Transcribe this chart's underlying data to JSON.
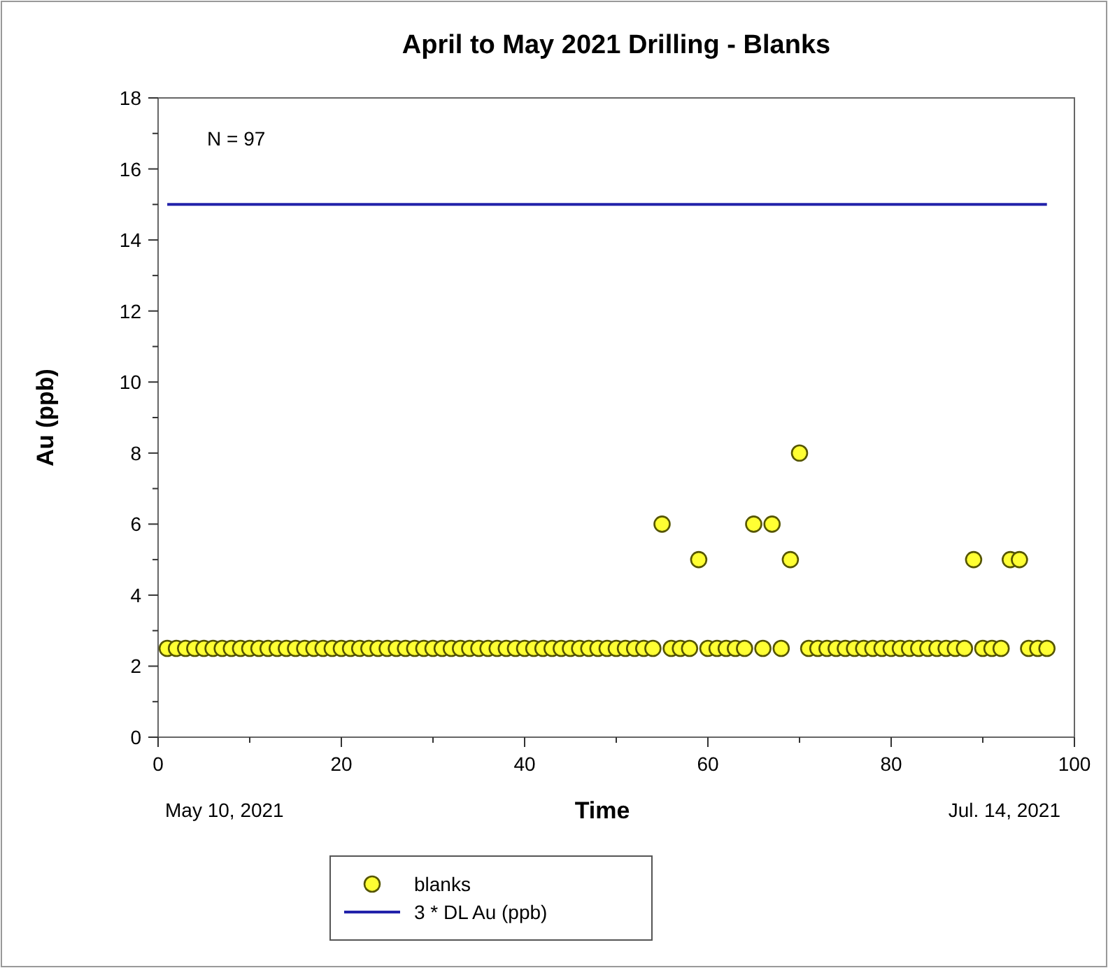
{
  "chart_data": {
    "type": "scatter",
    "title": "April to May 2021 Drilling - Blanks",
    "xlabel": "Time",
    "ylabel": "Au (ppb)",
    "x": [
      1,
      2,
      3,
      4,
      5,
      6,
      7,
      8,
      9,
      10,
      11,
      12,
      13,
      14,
      15,
      16,
      17,
      18,
      19,
      20,
      21,
      22,
      23,
      24,
      25,
      26,
      27,
      28,
      29,
      30,
      31,
      32,
      33,
      34,
      35,
      36,
      37,
      38,
      39,
      40,
      41,
      42,
      43,
      44,
      45,
      46,
      47,
      48,
      49,
      50,
      51,
      52,
      53,
      54,
      55,
      56,
      57,
      58,
      59,
      60,
      61,
      62,
      63,
      64,
      65,
      66,
      67,
      68,
      69,
      70,
      71,
      72,
      73,
      74,
      75,
      76,
      77,
      78,
      79,
      80,
      81,
      82,
      83,
      84,
      85,
      86,
      87,
      88,
      89,
      90,
      91,
      92,
      93,
      94,
      95,
      96,
      97
    ],
    "series": [
      {
        "name": "blanks",
        "color": "#ffff33",
        "marker": "circle",
        "values": [
          2.5,
          2.5,
          2.5,
          2.5,
          2.5,
          2.5,
          2.5,
          2.5,
          2.5,
          2.5,
          2.5,
          2.5,
          2.5,
          2.5,
          2.5,
          2.5,
          2.5,
          2.5,
          2.5,
          2.5,
          2.5,
          2.5,
          2.5,
          2.5,
          2.5,
          2.5,
          2.5,
          2.5,
          2.5,
          2.5,
          2.5,
          2.5,
          2.5,
          2.5,
          2.5,
          2.5,
          2.5,
          2.5,
          2.5,
          2.5,
          2.5,
          2.5,
          2.5,
          2.5,
          2.5,
          2.5,
          2.5,
          2.5,
          2.5,
          2.5,
          2.5,
          2.5,
          2.5,
          2.5,
          6,
          2.5,
          2.5,
          2.5,
          5,
          2.5,
          2.5,
          2.5,
          2.5,
          2.5,
          6,
          2.5,
          6,
          2.5,
          5,
          8,
          2.5,
          2.5,
          2.5,
          2.5,
          2.5,
          2.5,
          2.5,
          2.5,
          2.5,
          2.5,
          2.5,
          2.5,
          2.5,
          2.5,
          2.5,
          2.5,
          2.5,
          2.5,
          5,
          2.5,
          2.5,
          2.5,
          5,
          5,
          2.5,
          2.5,
          2.5
        ]
      },
      {
        "name": "3 * DL Au (ppb)",
        "type": "line",
        "color": "#2222aa",
        "marker": "none",
        "line_style": "solid",
        "x": [
          1,
          97
        ],
        "values": [
          15,
          15
        ]
      }
    ],
    "xlim": [
      0,
      100
    ],
    "xticks": [
      0,
      {
        "value": 10,
        "label": null
      },
      20,
      {
        "value": 30,
        "label": null
      },
      40,
      {
        "value": 50,
        "label": null
      },
      60,
      {
        "value": 70,
        "label": null
      },
      80,
      {
        "value": 90,
        "label": null
      },
      100
    ],
    "ylim": [
      0,
      18
    ],
    "yticks": [
      0,
      {
        "value": 1,
        "label": null
      },
      2,
      {
        "value": 3,
        "label": null
      },
      4,
      {
        "value": 5,
        "label": null
      },
      6,
      {
        "value": 7,
        "label": null
      },
      8,
      {
        "value": 9,
        "label": null
      },
      10,
      {
        "value": 11,
        "label": null
      },
      12,
      {
        "value": 13,
        "label": null
      },
      14,
      {
        "value": 15,
        "label": null
      },
      16,
      {
        "value": 17,
        "label": null
      },
      18
    ],
    "grid": false,
    "legend": "bottom",
    "annotations": [
      "N = 97",
      "May 10, 2021",
      "Jul. 14, 2021"
    ]
  }
}
